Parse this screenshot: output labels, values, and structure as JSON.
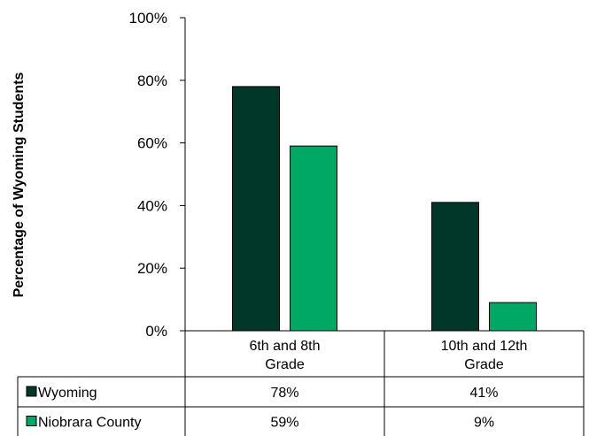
{
  "chart_data": {
    "type": "bar",
    "ylabel": "Percentage of Wyoming Students",
    "ylim": [
      0,
      100
    ],
    "yticks": [
      "0%",
      "20%",
      "40%",
      "60%",
      "80%",
      "100%"
    ],
    "yticks_values": [
      0,
      20,
      40,
      60,
      80,
      100
    ],
    "categories": [
      "6th and 8th Grade",
      "10th and 12th Grade"
    ],
    "category_lines": [
      [
        "6th and 8th",
        "Grade"
      ],
      [
        "10th and 12th",
        "Grade"
      ]
    ],
    "series": [
      {
        "name": "Wyoming",
        "values": [
          78,
          41
        ],
        "labels": [
          "78%",
          "41%"
        ],
        "color": "#003728"
      },
      {
        "name": "Niobrara County",
        "values": [
          59,
          9
        ],
        "labels": [
          "59%",
          "9%"
        ],
        "color": "#00a865"
      }
    ],
    "data_table": true,
    "grid": false
  }
}
